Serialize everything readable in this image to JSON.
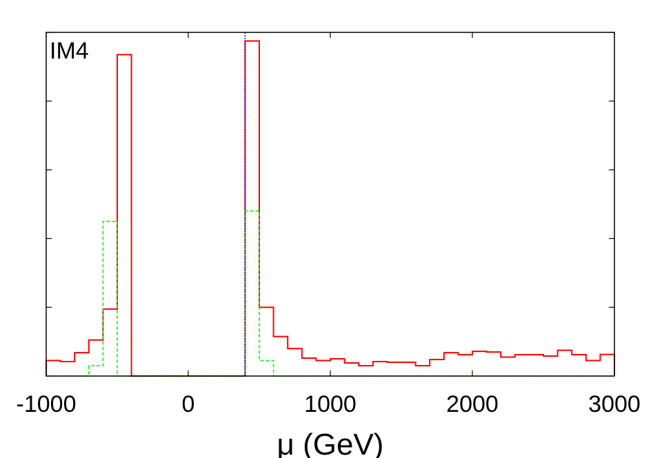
{
  "chart_data": {
    "type": "histogram",
    "panel_label": "IM4",
    "xlabel": "μ (GeV)",
    "ylabel": "",
    "xlim": [
      -1000,
      3000
    ],
    "ylim": [
      0,
      1.0
    ],
    "x_ticks": [
      -1000,
      0,
      1000,
      2000,
      3000
    ],
    "y_ticks": [
      0.2,
      0.4,
      0.6,
      0.8,
      1.0
    ],
    "y_tick_labels_shown": false,
    "grid": false,
    "reference_line": {
      "x": 400,
      "style": "dotted",
      "color": "#0000ff"
    },
    "bin_edges": [
      -1000,
      -900,
      -800,
      -700,
      -600,
      -500,
      -400,
      -300,
      -200,
      -100,
      0,
      100,
      200,
      300,
      400,
      500,
      600,
      700,
      800,
      900,
      1000,
      1100,
      1200,
      1300,
      1400,
      1500,
      1600,
      1700,
      1800,
      1900,
      2000,
      2100,
      2200,
      2300,
      2400,
      2500,
      2600,
      2700,
      2800,
      2900,
      3000
    ],
    "series": [
      {
        "color": "#ff0000",
        "style": "solid",
        "values": [
          0.045,
          0.042,
          0.068,
          0.105,
          0.195,
          0.935,
          0,
          0,
          0,
          0,
          0,
          0,
          0,
          0,
          0.975,
          0.2,
          0.115,
          0.08,
          0.052,
          0.045,
          0.05,
          0.038,
          0.03,
          0.042,
          0.04,
          0.04,
          0.03,
          0.048,
          0.068,
          0.062,
          0.072,
          0.07,
          0.055,
          0.062,
          0.062,
          0.058,
          0.075,
          0.062,
          0.045,
          0.063,
          0.053
        ]
      },
      {
        "color": "#00ff00",
        "style": "dashed",
        "values": [
          0,
          0,
          0,
          0.03,
          0.45,
          0,
          0,
          0,
          0,
          0,
          0,
          0,
          0,
          0,
          0.48,
          0.045,
          0,
          0,
          0,
          0,
          0,
          0,
          0,
          0,
          0,
          0,
          0,
          0,
          0,
          0,
          0,
          0,
          0,
          0,
          0,
          0,
          0,
          0,
          0,
          0,
          0
        ]
      }
    ]
  }
}
